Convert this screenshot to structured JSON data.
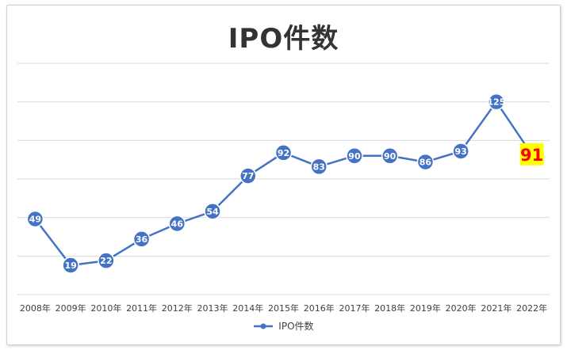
{
  "chart_data": {
    "type": "line",
    "title": "IPO件数",
    "categories": [
      "2008年",
      "2009年",
      "2010年",
      "2011年",
      "2012年",
      "2013年",
      "2014年",
      "2015年",
      "2016年",
      "2017年",
      "2018年",
      "2019年",
      "2020年",
      "2021年",
      "2022年"
    ],
    "series": [
      {
        "name": "IPO件数",
        "values": [
          49,
          19,
          22,
          36,
          46,
          54,
          77,
          92,
          83,
          90,
          90,
          86,
          93,
          125,
          91
        ],
        "color": "#4472C4"
      }
    ],
    "highlight": {
      "index": 14,
      "background": "#FFFF00",
      "text_color": "#FF0000"
    },
    "ylim": [
      0,
      150
    ],
    "gridlines": true,
    "y_tick_labels_shown": false,
    "legend": "bottom",
    "colors": {
      "line": "#4472C4",
      "marker_fill": "#4472C4",
      "label_text": "#FFFFFF",
      "grid": "#D9D9D9"
    }
  }
}
